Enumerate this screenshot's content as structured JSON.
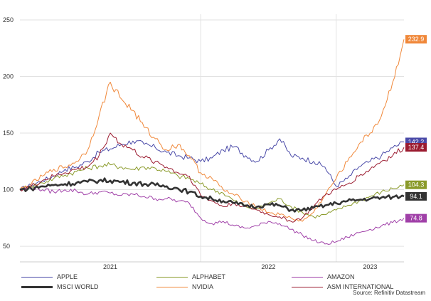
{
  "chart_data": {
    "type": "line",
    "title": "",
    "xlabel": "",
    "ylabel": "",
    "x_ticks": [
      "2021",
      "2022",
      "2023"
    ],
    "y_ticks": [
      50,
      100,
      150,
      200,
      250
    ],
    "ylim": [
      40,
      255
    ],
    "x": [
      "2020-09",
      "2020-10",
      "2020-11",
      "2020-12",
      "2021-01",
      "2021-02",
      "2021-03",
      "2021-04",
      "2021-05",
      "2021-06",
      "2021-07",
      "2021-08",
      "2021-09",
      "2021-10",
      "2021-11",
      "2021-12",
      "2022-01",
      "2022-02",
      "2022-03",
      "2022-04",
      "2022-05",
      "2022-06",
      "2022-07",
      "2022-08",
      "2022-09",
      "2022-10",
      "2022-11",
      "2022-12",
      "2023-01",
      "2023-02",
      "2023-03",
      "2023-04",
      "2023-05",
      "2023-06",
      "2023-07"
    ],
    "grid": true,
    "legend_position": "bottom",
    "series": [
      {
        "name": "APPLE",
        "color": "#4a4aa8",
        "end_label": "142.2",
        "values": [
          100,
          104,
          108,
          112,
          118,
          120,
          125,
          133,
          136,
          140,
          143,
          140,
          137,
          133,
          130,
          128,
          125,
          128,
          135,
          138,
          130,
          125,
          135,
          145,
          130,
          128,
          125,
          120,
          103,
          110,
          120,
          125,
          130,
          137,
          142.2
        ]
      },
      {
        "name": "ALPHABET",
        "color": "#8a9a2a",
        "end_label": "104.3",
        "values": [
          100,
          103,
          106,
          110,
          113,
          116,
          119,
          121,
          122,
          120,
          118,
          120,
          119,
          116,
          112,
          110,
          105,
          100,
          97,
          90,
          85,
          83,
          88,
          92,
          85,
          80,
          76,
          78,
          82,
          86,
          90,
          94,
          98,
          101,
          104.3
        ]
      },
      {
        "name": "AMAZON",
        "color": "#a040a8",
        "end_label": "74.8",
        "values": [
          100,
          102,
          100,
          98,
          100,
          99,
          96,
          98,
          97,
          95,
          96,
          94,
          92,
          92,
          90,
          88,
          75,
          70,
          72,
          68,
          66,
          68,
          72,
          70,
          65,
          60,
          55,
          52,
          54,
          58,
          62,
          65,
          68,
          71,
          74.8
        ]
      },
      {
        "name": "MSCI WORLD",
        "color": "#333333",
        "end_label": "94.1",
        "values": [
          100,
          101,
          103,
          104,
          105,
          106,
          107,
          108,
          108,
          107,
          106,
          105,
          104,
          103,
          101,
          98,
          94,
          92,
          90,
          88,
          86,
          85,
          87,
          86,
          82,
          82,
          84,
          86,
          88,
          90,
          91,
          92,
          93,
          93.5,
          94.1
        ]
      },
      {
        "name": "NVIDIA",
        "color": "#f0883a",
        "end_label": "232.9",
        "values": [
          100,
          105,
          112,
          118,
          120,
          125,
          135,
          165,
          195,
          180,
          170,
          155,
          145,
          135,
          140,
          130,
          115,
          110,
          100,
          95,
          90,
          85,
          80,
          78,
          75,
          72,
          80,
          95,
          110,
          125,
          140,
          150,
          165,
          195,
          232.9
        ]
      },
      {
        "name": "ASM INTERNATIONAL",
        "color": "#9b1b30",
        "end_label": "137.4",
        "values": [
          100,
          103,
          108,
          112,
          115,
          118,
          120,
          130,
          150,
          140,
          135,
          128,
          125,
          120,
          115,
          112,
          95,
          90,
          85,
          88,
          85,
          82,
          78,
          76,
          72,
          75,
          85,
          95,
          100,
          105,
          112,
          118,
          125,
          130,
          137.4
        ]
      }
    ]
  },
  "source_text": "Source: Refinitiv Datastream"
}
